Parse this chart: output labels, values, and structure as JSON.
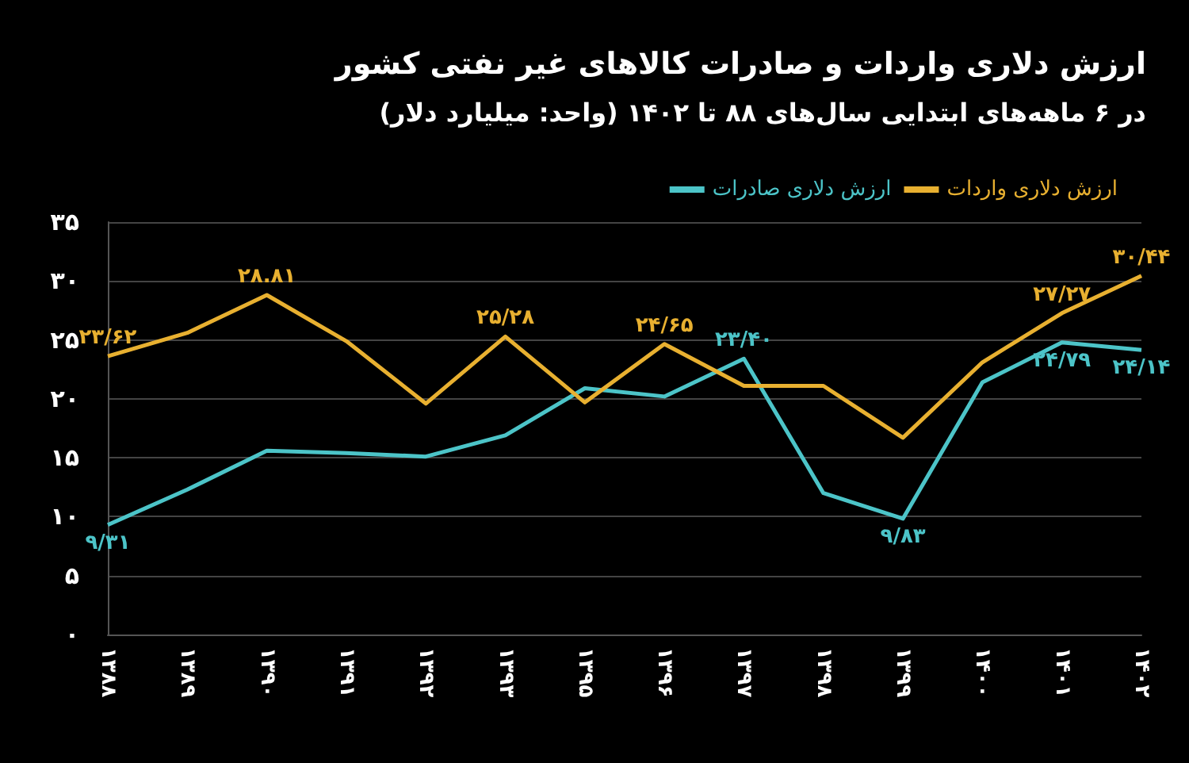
{
  "chart_data": {
    "type": "line",
    "title": "ارزش دلاری واردات و صادرات کالاهای غیر نفتی کشور",
    "subtitle": "در ۶ ماهه‌های ابتدایی سال‌های ۸۸ تا ۱۴۰۲ (واحد: میلیارد دلار)",
    "categories": [
      "۱۳۸۸",
      "۱۳۸۹",
      "۱۳۹۰",
      "۱۳۹۱",
      "۱۳۹۲",
      "۱۳۹۳",
      "۱۳۹۵",
      "۱۳۹۶",
      "۱۳۹۷",
      "۱۳۹۸",
      "۱۳۹۹",
      "۱۴۰۰",
      "۱۴۰۱",
      "۱۴۰۲"
    ],
    "series": [
      {
        "name": "ارزش دلاری صادرات",
        "color": "#4cc4c8",
        "values": [
          9.31,
          12.3,
          15.6,
          15.4,
          15.1,
          16.9,
          20.9,
          20.2,
          23.4,
          12.0,
          9.83,
          21.4,
          24.79,
          24.14
        ],
        "value_labels": [
          "۹/۳۱",
          null,
          null,
          null,
          null,
          null,
          null,
          null,
          "۲۳/۴۰",
          null,
          "۹/۸۳",
          null,
          "۲۴/۷۹",
          "۲۴/۱۴"
        ]
      },
      {
        "name": "ارزش دلاری واردات",
        "color": "#e8b030",
        "values": [
          23.62,
          25.6,
          28.81,
          24.9,
          19.6,
          25.28,
          19.7,
          24.65,
          21.1,
          21.1,
          16.7,
          23.1,
          27.27,
          30.44
        ],
        "value_labels": [
          "۲۳/۶۲",
          null,
          "۲۸.۸۱",
          null,
          null,
          "۲۵/۲۸",
          null,
          "۲۴/۶۵",
          null,
          null,
          null,
          null,
          "۲۷/۲۷",
          "۳۰/۴۴"
        ]
      }
    ],
    "ylim": [
      0,
      35
    ],
    "yticks": [
      {
        "value": 0,
        "label": "۰"
      },
      {
        "value": 5,
        "label": "۵"
      },
      {
        "value": 10,
        "label": "۱۰"
      },
      {
        "value": 15,
        "label": "۱۵"
      },
      {
        "value": 20,
        "label": "۲۰"
      },
      {
        "value": 25,
        "label": "۲۵"
      },
      {
        "value": 30,
        "label": "۳۰"
      },
      {
        "value": 35,
        "label": "۳۵"
      }
    ],
    "grid": "y",
    "legend": "top right",
    "marker": "none",
    "line_style": "solid"
  }
}
